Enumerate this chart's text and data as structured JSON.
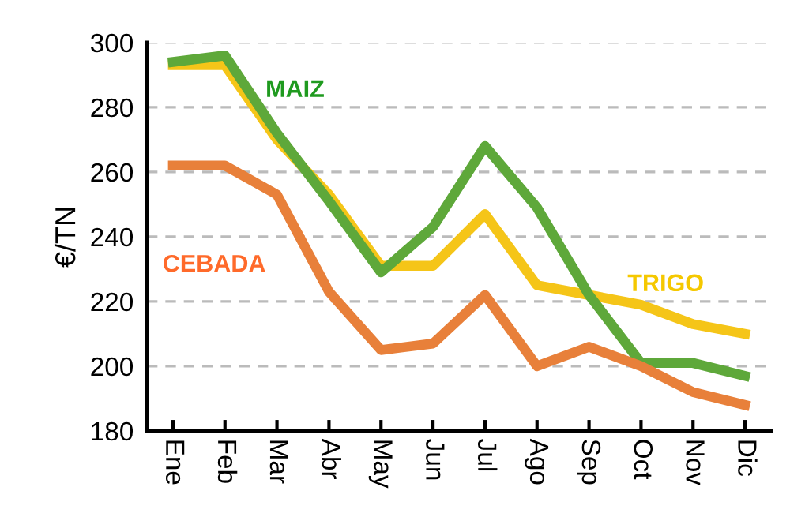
{
  "chart_data": {
    "type": "line",
    "ylabel": "€/TN",
    "categories": [
      "Ene",
      "Feb",
      "Mar",
      "Abr",
      "May",
      "Jun",
      "Jul",
      "Ago",
      "Sep",
      "Oct",
      "Nov",
      "Dic"
    ],
    "series": [
      {
        "name": "TRIGO",
        "color": "#f5c518",
        "values": [
          293,
          293,
          270,
          253,
          231,
          231,
          247,
          225,
          222,
          219,
          213,
          210
        ]
      },
      {
        "name": "MAIZ",
        "color": "#5ea83a",
        "values": [
          294,
          296,
          272,
          251,
          229,
          243,
          268,
          249,
          222,
          201,
          201,
          197
        ]
      },
      {
        "name": "CEBADA",
        "color": "#e8803a",
        "values": [
          262,
          262,
          253,
          223,
          205,
          207,
          222,
          200,
          206,
          200,
          192,
          188
        ]
      }
    ],
    "ylim": [
      180,
      300
    ],
    "yticks": [
      180,
      200,
      220,
      240,
      260,
      280,
      300
    ],
    "grid": "y",
    "legend": false,
    "marker": "none",
    "line_style": "solid"
  }
}
